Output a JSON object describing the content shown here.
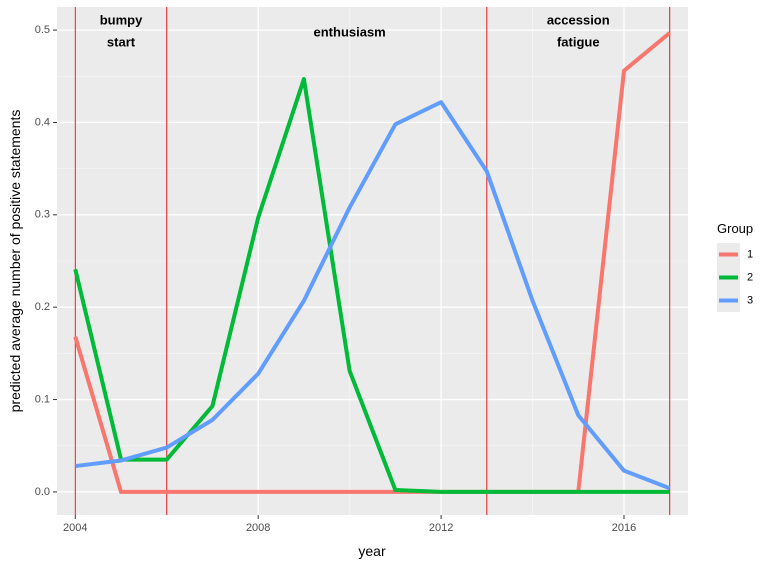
{
  "chart_data": {
    "type": "line",
    "xlabel": "year",
    "ylabel": "predicted average number of positive statements",
    "xlim": [
      2003.6,
      2017.4
    ],
    "ylim": [
      -0.025,
      0.525
    ],
    "x_ticks": [
      2004,
      2008,
      2012,
      2016
    ],
    "y_ticks": [
      0.0,
      0.1,
      0.2,
      0.3,
      0.4,
      0.5
    ],
    "y_tick_labels": [
      "0.0",
      "0.1",
      "0.2",
      "0.3",
      "0.4",
      "0.5"
    ],
    "x_minor_ticks": [
      2006,
      2010,
      2014
    ],
    "y_minor_ticks": [
      0.05,
      0.15,
      0.25,
      0.35,
      0.45
    ],
    "grid": true,
    "background": "#ebebeb",
    "legend": {
      "title": "Group",
      "position": "right"
    },
    "series": [
      {
        "name": "1",
        "color": "#f8766d",
        "x": [
          2004,
          2005,
          2006,
          2007,
          2008,
          2009,
          2010,
          2011,
          2012,
          2013,
          2014,
          2015,
          2016,
          2017
        ],
        "y": [
          0.168,
          0.0,
          0.0,
          0.0,
          0.0,
          0.0,
          0.0,
          0.0,
          0.0,
          0.0,
          0.0,
          0.0,
          0.456,
          0.497
        ]
      },
      {
        "name": "2",
        "color": "#00ba38",
        "x": [
          2004,
          2005,
          2006,
          2007,
          2008,
          2009,
          2010,
          2011,
          2012,
          2013,
          2014,
          2015,
          2016,
          2017
        ],
        "y": [
          0.241,
          0.035,
          0.035,
          0.093,
          0.297,
          0.447,
          0.131,
          0.002,
          0.0,
          0.0,
          0.0,
          0.0,
          0.0,
          0.0
        ]
      },
      {
        "name": "3",
        "color": "#619cff",
        "x": [
          2004,
          2005,
          2006,
          2007,
          2008,
          2009,
          2010,
          2011,
          2012,
          2013,
          2014,
          2015,
          2016,
          2017
        ],
        "y": [
          0.028,
          0.034,
          0.048,
          0.078,
          0.128,
          0.207,
          0.308,
          0.398,
          0.422,
          0.347,
          0.207,
          0.083,
          0.023,
          0.004
        ]
      }
    ],
    "vlines": {
      "color": "#e41a1c",
      "x": [
        2004,
        2006,
        2013,
        2017
      ]
    },
    "annotations": [
      {
        "id": "bumpy-start",
        "lines": [
          "bumpy",
          "start"
        ],
        "x": 2005.0,
        "y": [
          0.51,
          0.486
        ]
      },
      {
        "id": "enthusiasm",
        "lines": [
          "enthusiasm"
        ],
        "x": 2010.0,
        "y": [
          0.497
        ]
      },
      {
        "id": "accession-fatigue",
        "lines": [
          "accession",
          "fatigue"
        ],
        "x": 2015.0,
        "y": [
          0.51,
          0.486
        ]
      }
    ]
  }
}
